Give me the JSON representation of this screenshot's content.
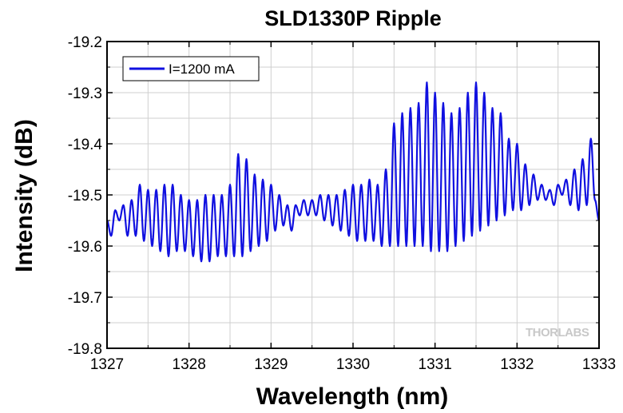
{
  "chart_data": {
    "type": "line",
    "title": "SLD1330P Ripple",
    "xlabel": "Wavelength (nm)",
    "ylabel": "Intensity (dB)",
    "xlim": [
      1327,
      1333
    ],
    "ylim": [
      -19.8,
      -19.2
    ],
    "xticks": [
      "1327",
      "1328",
      "1329",
      "1330",
      "1331",
      "1332",
      "1333"
    ],
    "yticks": [
      "-19.2",
      "-19.3",
      "-19.4",
      "-19.5",
      "-19.6",
      "-19.7",
      "-19.8"
    ],
    "grid": true,
    "legend": {
      "position": "top-left"
    },
    "series": [
      {
        "name": "I=1200 mA",
        "color": "#1010e0",
        "points": [
          [
            1327.0,
            -19.55
          ],
          [
            1327.05,
            -19.58
          ],
          [
            1327.1,
            -19.53
          ],
          [
            1327.15,
            -19.55
          ],
          [
            1327.2,
            -19.52
          ],
          [
            1327.25,
            -19.58
          ],
          [
            1327.3,
            -19.51
          ],
          [
            1327.35,
            -19.58
          ],
          [
            1327.4,
            -19.48
          ],
          [
            1327.45,
            -19.59
          ],
          [
            1327.5,
            -19.49
          ],
          [
            1327.55,
            -19.6
          ],
          [
            1327.6,
            -19.49
          ],
          [
            1327.65,
            -19.61
          ],
          [
            1327.7,
            -19.48
          ],
          [
            1327.75,
            -19.62
          ],
          [
            1327.8,
            -19.48
          ],
          [
            1327.85,
            -19.61
          ],
          [
            1327.9,
            -19.5
          ],
          [
            1327.95,
            -19.61
          ],
          [
            1328.0,
            -19.51
          ],
          [
            1328.05,
            -19.62
          ],
          [
            1328.1,
            -19.51
          ],
          [
            1328.15,
            -19.63
          ],
          [
            1328.2,
            -19.5
          ],
          [
            1328.25,
            -19.63
          ],
          [
            1328.3,
            -19.5
          ],
          [
            1328.35,
            -19.62
          ],
          [
            1328.4,
            -19.5
          ],
          [
            1328.45,
            -19.62
          ],
          [
            1328.5,
            -19.48
          ],
          [
            1328.55,
            -19.62
          ],
          [
            1328.6,
            -19.42
          ],
          [
            1328.65,
            -19.62
          ],
          [
            1328.7,
            -19.43
          ],
          [
            1328.75,
            -19.61
          ],
          [
            1328.8,
            -19.46
          ],
          [
            1328.85,
            -19.6
          ],
          [
            1328.9,
            -19.47
          ],
          [
            1328.95,
            -19.59
          ],
          [
            1329.0,
            -19.48
          ],
          [
            1329.05,
            -19.57
          ],
          [
            1329.1,
            -19.5
          ],
          [
            1329.15,
            -19.56
          ],
          [
            1329.2,
            -19.52
          ],
          [
            1329.25,
            -19.57
          ],
          [
            1329.3,
            -19.52
          ],
          [
            1329.35,
            -19.54
          ],
          [
            1329.4,
            -19.51
          ],
          [
            1329.45,
            -19.54
          ],
          [
            1329.5,
            -19.51
          ],
          [
            1329.55,
            -19.54
          ],
          [
            1329.6,
            -19.5
          ],
          [
            1329.65,
            -19.55
          ],
          [
            1329.7,
            -19.5
          ],
          [
            1329.75,
            -19.56
          ],
          [
            1329.8,
            -19.5
          ],
          [
            1329.85,
            -19.57
          ],
          [
            1329.9,
            -19.49
          ],
          [
            1329.95,
            -19.58
          ],
          [
            1330.0,
            -19.48
          ],
          [
            1330.05,
            -19.59
          ],
          [
            1330.1,
            -19.48
          ],
          [
            1330.15,
            -19.59
          ],
          [
            1330.2,
            -19.47
          ],
          [
            1330.25,
            -19.59
          ],
          [
            1330.3,
            -19.48
          ],
          [
            1330.35,
            -19.6
          ],
          [
            1330.4,
            -19.45
          ],
          [
            1330.45,
            -19.6
          ],
          [
            1330.5,
            -19.36
          ],
          [
            1330.55,
            -19.6
          ],
          [
            1330.6,
            -19.34
          ],
          [
            1330.65,
            -19.6
          ],
          [
            1330.7,
            -19.33
          ],
          [
            1330.75,
            -19.6
          ],
          [
            1330.8,
            -19.32
          ],
          [
            1330.85,
            -19.6
          ],
          [
            1330.9,
            -19.28
          ],
          [
            1330.95,
            -19.61
          ],
          [
            1331.0,
            -19.3
          ],
          [
            1331.05,
            -19.61
          ],
          [
            1331.1,
            -19.32
          ],
          [
            1331.15,
            -19.61
          ],
          [
            1331.2,
            -19.34
          ],
          [
            1331.25,
            -19.6
          ],
          [
            1331.3,
            -19.33
          ],
          [
            1331.35,
            -19.59
          ],
          [
            1331.4,
            -19.3
          ],
          [
            1331.45,
            -19.58
          ],
          [
            1331.5,
            -19.28
          ],
          [
            1331.55,
            -19.57
          ],
          [
            1331.6,
            -19.3
          ],
          [
            1331.65,
            -19.56
          ],
          [
            1331.7,
            -19.33
          ],
          [
            1331.75,
            -19.55
          ],
          [
            1331.8,
            -19.34
          ],
          [
            1331.85,
            -19.54
          ],
          [
            1331.9,
            -19.39
          ],
          [
            1331.95,
            -19.53
          ],
          [
            1332.0,
            -19.4
          ],
          [
            1332.05,
            -19.53
          ],
          [
            1332.1,
            -19.44
          ],
          [
            1332.15,
            -19.52
          ],
          [
            1332.2,
            -19.46
          ],
          [
            1332.25,
            -19.51
          ],
          [
            1332.3,
            -19.48
          ],
          [
            1332.35,
            -19.51
          ],
          [
            1332.4,
            -19.49
          ],
          [
            1332.45,
            -19.52
          ],
          [
            1332.5,
            -19.48
          ],
          [
            1332.55,
            -19.5
          ],
          [
            1332.6,
            -19.47
          ],
          [
            1332.65,
            -19.52
          ],
          [
            1332.7,
            -19.45
          ],
          [
            1332.75,
            -19.53
          ],
          [
            1332.8,
            -19.43
          ],
          [
            1332.85,
            -19.52
          ],
          [
            1332.9,
            -19.39
          ],
          [
            1332.95,
            -19.51
          ],
          [
            1333.0,
            -19.55
          ]
        ]
      }
    ]
  },
  "watermark": "THORLABS"
}
